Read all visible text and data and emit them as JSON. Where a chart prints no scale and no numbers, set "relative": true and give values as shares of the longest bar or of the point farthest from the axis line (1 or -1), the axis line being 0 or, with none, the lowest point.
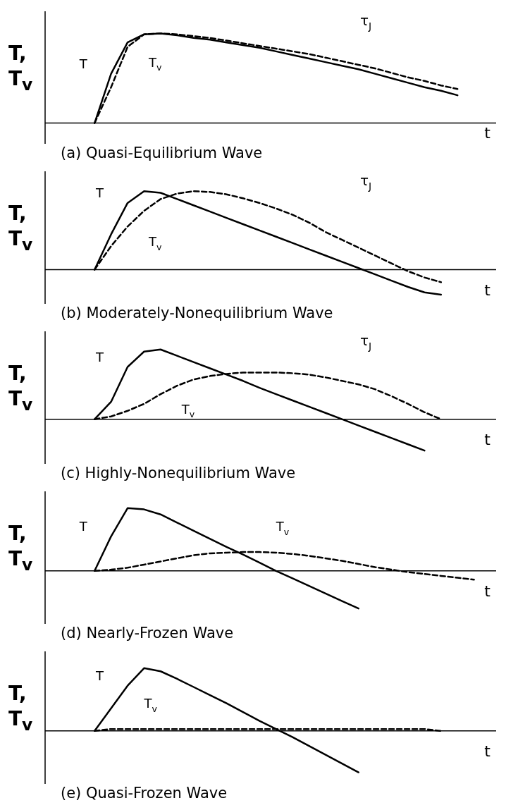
{
  "chart_data": [
    {
      "type": "line",
      "relative": true,
      "title": "(a) Quasi-Equilibrium Wave",
      "xlabel": "t",
      "ylabel": "T, T$_{v}$",
      "annotations": [
        "τ$_{J}$"
      ],
      "legend": false,
      "marker": "none",
      "categories": [
        null,
        null,
        null,
        null,
        null,
        null,
        null,
        null,
        null,
        null,
        null,
        null,
        null,
        null,
        null,
        null,
        null,
        null,
        null,
        null,
        null,
        null,
        null,
        null,
        null,
        null,
        null,
        null
      ],
      "series": [
        {
          "name": "T",
          "color": "#000000",
          "line_style": "solid",
          "values": [
            null,
            null,
            null,
            0,
            0.55,
            0.9,
            0.99,
            1,
            0.98,
            0.95,
            0.93,
            0.9,
            0.87,
            0.84,
            0.8,
            0.76,
            0.72,
            0.68,
            0.64,
            0.6,
            0.55,
            0.5,
            0.45,
            0.4,
            0.36,
            0.31,
            null,
            null
          ]
        },
        {
          "name": "T$_{v}$",
          "color": "#000000",
          "line_style": "dashed",
          "values": [
            null,
            null,
            null,
            0,
            0.4,
            0.85,
            0.99,
            1,
            0.99,
            0.97,
            0.95,
            0.92,
            0.89,
            0.86,
            0.83,
            0.8,
            0.77,
            0.73,
            0.69,
            0.65,
            0.61,
            0.56,
            0.51,
            0.47,
            0.42,
            0.38,
            null,
            null
          ]
        }
      ]
    },
    {
      "type": "line",
      "relative": true,
      "title": "(b) Moderately-Nonequilibrium Wave",
      "xlabel": "t",
      "ylabel": "T, T$_{v}$",
      "annotations": [
        "τ$_{J}$"
      ],
      "legend": false,
      "marker": "none",
      "categories": [
        null,
        null,
        null,
        null,
        null,
        null,
        null,
        null,
        null,
        null,
        null,
        null,
        null,
        null,
        null,
        null,
        null,
        null,
        null,
        null,
        null,
        null,
        null,
        null,
        null,
        null,
        null,
        null
      ],
      "series": [
        {
          "name": "T",
          "color": "#000000",
          "line_style": "solid",
          "values": [
            null,
            null,
            null,
            0,
            0.45,
            0.85,
            1,
            0.98,
            0.9,
            0.82,
            0.74,
            0.66,
            0.58,
            0.5,
            0.42,
            0.34,
            0.26,
            0.18,
            0.1,
            0.02,
            -0.06,
            -0.14,
            -0.22,
            -0.29,
            -0.32,
            null,
            null,
            null
          ]
        },
        {
          "name": "T$_{v}$",
          "color": "#000000",
          "line_style": "dashed",
          "values": [
            null,
            null,
            null,
            0,
            0.3,
            0.55,
            0.75,
            0.9,
            0.97,
            1,
            0.99,
            0.96,
            0.91,
            0.85,
            0.78,
            0.7,
            0.6,
            0.48,
            0.38,
            0.28,
            0.18,
            0.08,
            -0.02,
            -0.1,
            -0.16,
            null,
            null,
            null
          ]
        }
      ]
    },
    {
      "type": "line",
      "relative": true,
      "title": "(c) Highly-Nonequilibrium Wave",
      "xlabel": "t",
      "ylabel": "T, T$_{v}$",
      "annotations": [
        "τ$_{J}$"
      ],
      "legend": false,
      "marker": "none",
      "categories": [
        null,
        null,
        null,
        null,
        null,
        null,
        null,
        null,
        null,
        null,
        null,
        null,
        null,
        null,
        null,
        null,
        null,
        null,
        null,
        null,
        null,
        null,
        null,
        null,
        null,
        null,
        null,
        null
      ],
      "series": [
        {
          "name": "T",
          "color": "#000000",
          "line_style": "solid",
          "values": [
            null,
            null,
            null,
            0,
            0.25,
            0.75,
            0.97,
            1,
            0.91,
            0.82,
            0.73,
            0.64,
            0.55,
            0.45,
            0.36,
            0.27,
            0.18,
            0.09,
            0,
            -0.09,
            -0.18,
            -0.27,
            -0.36,
            -0.45,
            null,
            null,
            null,
            null
          ]
        },
        {
          "name": "T$_{v}$",
          "color": "#000000",
          "line_style": "dashed",
          "values": [
            null,
            null,
            null,
            0,
            0.04,
            0.12,
            0.22,
            0.36,
            0.48,
            0.57,
            0.62,
            0.65,
            0.67,
            0.67,
            0.67,
            0.66,
            0.64,
            0.6,
            0.55,
            0.5,
            0.43,
            0.33,
            0.22,
            0.1,
            0,
            null,
            null,
            null
          ]
        }
      ]
    },
    {
      "type": "line",
      "relative": true,
      "title": "(d) Nearly-Frozen Wave",
      "xlabel": "t",
      "ylabel": "T, T$_{v}$",
      "legend": false,
      "marker": "none",
      "categories": [
        null,
        null,
        null,
        null,
        null,
        null,
        null,
        null,
        null,
        null,
        null,
        null,
        null,
        null,
        null,
        null,
        null,
        null,
        null,
        null,
        null,
        null,
        null,
        null,
        null,
        null,
        null,
        null
      ],
      "series": [
        {
          "name": "T",
          "color": "#000000",
          "line_style": "solid",
          "values": [
            null,
            null,
            null,
            0,
            0.55,
            1,
            0.98,
            0.9,
            0.77,
            0.64,
            0.51,
            0.38,
            0.26,
            0.13,
            0,
            -0.12,
            -0.24,
            -0.36,
            -0.48,
            -0.6,
            null,
            null,
            null,
            null,
            null,
            null,
            null,
            null
          ]
        },
        {
          "name": "T$_{v}$",
          "color": "#000000",
          "line_style": "dashed",
          "values": [
            null,
            null,
            null,
            0,
            0.02,
            0.05,
            0.1,
            0.15,
            0.2,
            0.25,
            0.28,
            0.29,
            0.3,
            0.3,
            0.29,
            0.27,
            0.24,
            0.2,
            0.16,
            0.11,
            0.06,
            0.02,
            -0.02,
            -0.05,
            -0.08,
            -0.11,
            -0.14,
            null
          ]
        }
      ]
    },
    {
      "type": "line",
      "relative": true,
      "title": "(e) Quasi-Frozen Wave",
      "xlabel": "t",
      "ylabel": "T, T$_{v}$",
      "legend": false,
      "marker": "none",
      "categories": [
        null,
        null,
        null,
        null,
        null,
        null,
        null,
        null,
        null,
        null,
        null,
        null,
        null,
        null,
        null,
        null,
        null,
        null,
        null,
        null,
        null,
        null,
        null,
        null,
        null,
        null,
        null,
        null
      ],
      "series": [
        {
          "name": "T",
          "color": "#000000",
          "line_style": "solid",
          "values": [
            null,
            null,
            null,
            0,
            0.36,
            0.72,
            1,
            0.95,
            0.83,
            0.7,
            0.57,
            0.44,
            0.3,
            0.16,
            0.03,
            -0.1,
            -0.24,
            -0.38,
            -0.52,
            -0.66,
            null,
            null,
            null,
            null,
            null,
            null,
            null,
            null
          ]
        },
        {
          "name": "T$_{v}$",
          "color": "#000000",
          "line_style": "dashed",
          "values": [
            null,
            null,
            null,
            0,
            0.03,
            0.03,
            0.03,
            0.03,
            0.03,
            0.03,
            0.03,
            0.03,
            0.03,
            0.03,
            0.03,
            0.03,
            0.03,
            0.03,
            0.03,
            0.03,
            0.03,
            0.03,
            0.03,
            0.03,
            0,
            null,
            null,
            null
          ]
        }
      ]
    }
  ]
}
